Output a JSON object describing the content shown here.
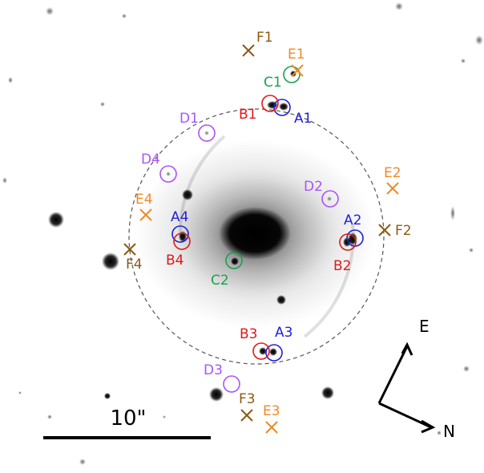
{
  "colors": {
    "A": "#1f1fdc",
    "B": "#e01818",
    "C": "#17a34a",
    "D": "#a855f7",
    "E": "#f08a24",
    "F": "#8b5a14"
  },
  "labels": {
    "A1": "A1",
    "A2": "A2",
    "A3": "A3",
    "A4": "A4",
    "B1": "B1",
    "B2": "B2",
    "B3": "B3",
    "B4": "B4",
    "C1": "C1",
    "C2": "C2",
    "D1": "D1",
    "D2": "D2",
    "D3": "D3",
    "D4": "D4",
    "E1": "E1",
    "E2": "E2",
    "E3": "E3",
    "E4": "E4",
    "F1": "F1",
    "F2": "F2",
    "F3": "F3",
    "F4": "F4"
  },
  "scale_bar": {
    "label": "10\""
  },
  "compass": {
    "east": "E",
    "north": "N"
  }
}
